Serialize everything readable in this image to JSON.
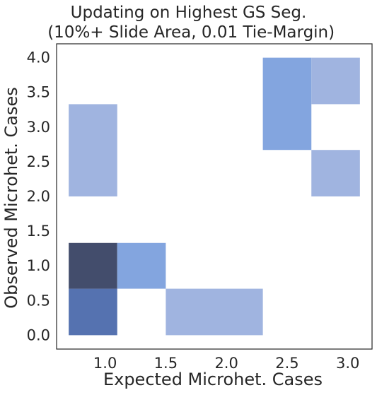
{
  "chart_data": {
    "type": "heatmap",
    "title_line1": "Updating on Highest GS Seg.",
    "title_line2": " (10%+ Slide Area, 0.01 Tie-Margin)",
    "xlabel": "Expected Microhet. Cases",
    "ylabel": "Observed Microhet. Cases",
    "xlim": [
      0.6,
      3.2
    ],
    "ylim": [
      -0.2,
      4.2
    ],
    "x_ticks": [
      "1.0",
      "1.5",
      "2.0",
      "2.5",
      "3.0"
    ],
    "y_ticks": [
      "0.0",
      "0.5",
      "1.0",
      "1.5",
      "2.0",
      "2.5",
      "3.0",
      "3.5",
      "4.0"
    ],
    "grid": false,
    "cells": [
      {
        "x0": 0.7,
        "x1": 1.1,
        "y0": 0.0,
        "y1": 0.67,
        "color": "#5572B0"
      },
      {
        "x0": 0.7,
        "x1": 1.1,
        "y0": 0.67,
        "y1": 1.33,
        "color": "#434D6C"
      },
      {
        "x0": 1.1,
        "x1": 1.5,
        "y0": 0.67,
        "y1": 1.33,
        "color": "#83A5DF"
      },
      {
        "x0": 1.5,
        "x1": 2.3,
        "y0": 0.0,
        "y1": 0.67,
        "color": "#A0B4E0"
      },
      {
        "x0": 0.7,
        "x1": 1.1,
        "y0": 2.0,
        "y1": 3.33,
        "color": "#A0B4E0"
      },
      {
        "x0": 2.3,
        "x1": 2.7,
        "y0": 2.67,
        "y1": 4.0,
        "color": "#83A5DF"
      },
      {
        "x0": 2.7,
        "x1": 3.1,
        "y0": 3.33,
        "y1": 4.0,
        "color": "#A0B4E0"
      },
      {
        "x0": 2.7,
        "x1": 3.1,
        "y0": 2.0,
        "y1": 2.67,
        "color": "#A0B4E0"
      }
    ]
  }
}
